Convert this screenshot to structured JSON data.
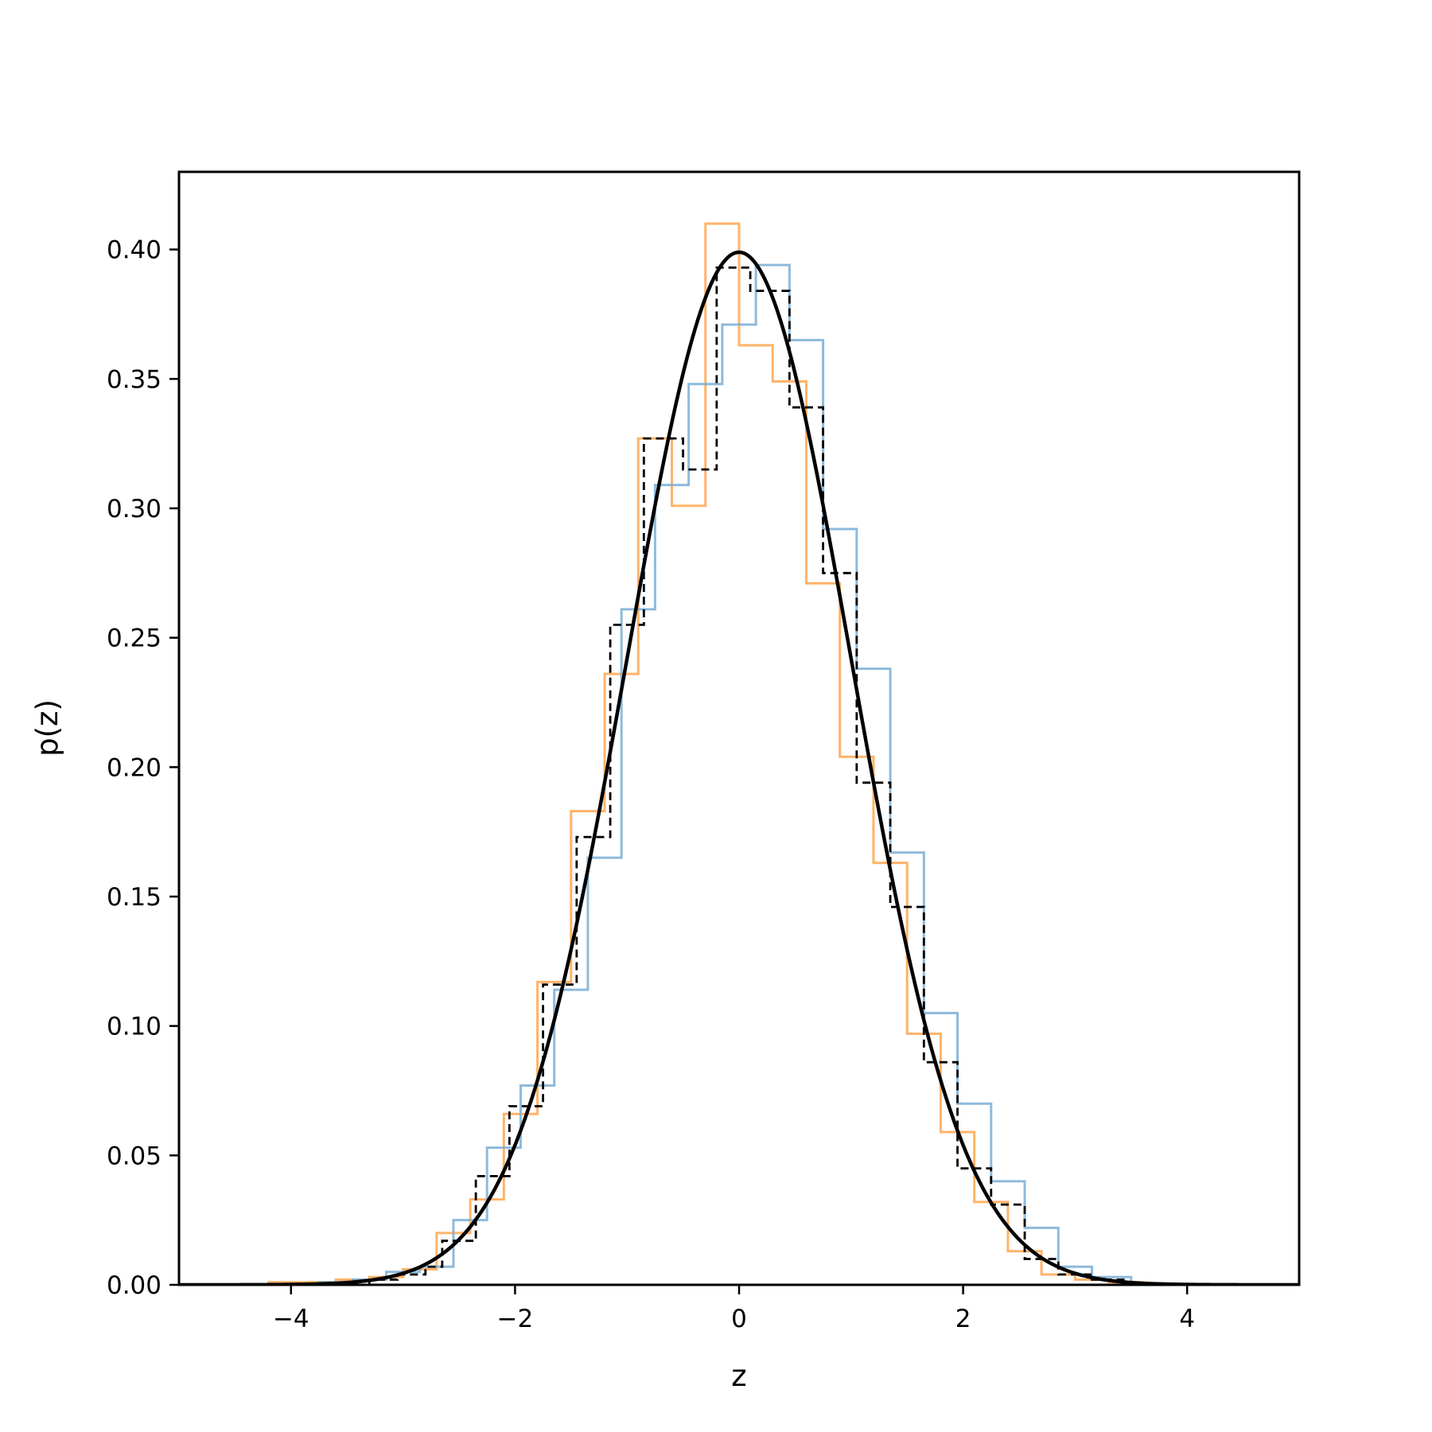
{
  "chart_data": {
    "type": "line",
    "xlabel": "z",
    "ylabel": "p(z)",
    "xlim": [
      -5,
      5
    ],
    "ylim": [
      0,
      0.43
    ],
    "grid": false,
    "legend": "none",
    "xticks": [
      {
        "value": -4,
        "label": "−4"
      },
      {
        "value": -2,
        "label": "−2"
      },
      {
        "value": 0,
        "label": "0"
      },
      {
        "value": 2,
        "label": "2"
      },
      {
        "value": 4,
        "label": "4"
      }
    ],
    "yticks": [
      {
        "value": 0.0,
        "label": "0.00"
      },
      {
        "value": 0.05,
        "label": "0.05"
      },
      {
        "value": 0.1,
        "label": "0.10"
      },
      {
        "value": 0.15,
        "label": "0.15"
      },
      {
        "value": 0.2,
        "label": "0.20"
      },
      {
        "value": 0.25,
        "label": "0.25"
      },
      {
        "value": 0.3,
        "label": "0.30"
      },
      {
        "value": 0.35,
        "label": "0.35"
      },
      {
        "value": 0.4,
        "label": "0.40"
      }
    ],
    "series": [
      {
        "style": "step",
        "color": "#ffa64d",
        "edges": [
          -4.2,
          -3.9,
          -3.6,
          -3.3,
          -3.0,
          -2.7,
          -2.4,
          -2.1,
          -1.8,
          -1.5,
          -1.2,
          -0.9,
          -0.6,
          -0.3,
          0.0,
          0.3,
          0.6,
          0.9,
          1.2,
          1.5,
          1.8,
          2.1,
          2.4,
          2.7,
          3.0,
          3.3,
          3.6
        ],
        "values": [
          0.001,
          0.001,
          0.002,
          0.003,
          0.006,
          0.02,
          0.033,
          0.066,
          0.117,
          0.183,
          0.236,
          0.327,
          0.301,
          0.41,
          0.363,
          0.349,
          0.271,
          0.204,
          0.163,
          0.097,
          0.059,
          0.032,
          0.013,
          0.004,
          0.002,
          0.001
        ]
      },
      {
        "style": "step",
        "color": "#7aaed6",
        "edges": [
          -3.75,
          -3.45,
          -3.15,
          -2.85,
          -2.55,
          -2.25,
          -1.95,
          -1.65,
          -1.35,
          -1.05,
          -0.75,
          -0.45,
          -0.15,
          0.15,
          0.45,
          0.75,
          1.05,
          1.35,
          1.65,
          1.95,
          2.25,
          2.55,
          2.85,
          3.15,
          3.5
        ],
        "values": [
          0.001,
          0.002,
          0.005,
          0.007,
          0.025,
          0.053,
          0.077,
          0.114,
          0.165,
          0.261,
          0.309,
          0.348,
          0.371,
          0.394,
          0.365,
          0.292,
          0.238,
          0.167,
          0.105,
          0.07,
          0.04,
          0.022,
          0.007,
          0.003
        ]
      },
      {
        "style": "step-dashed",
        "color": "#000000",
        "edges": [
          -3.3,
          -3.05,
          -2.8,
          -2.65,
          -2.35,
          -2.05,
          -1.75,
          -1.45,
          -1.15,
          -0.85,
          -0.5,
          -0.2,
          0.1,
          0.45,
          0.75,
          1.05,
          1.35,
          1.65,
          1.95,
          2.25,
          2.55,
          2.85,
          3.15,
          3.45
        ],
        "values": [
          0.002,
          0.004,
          0.007,
          0.017,
          0.042,
          0.069,
          0.116,
          0.173,
          0.255,
          0.327,
          0.315,
          0.393,
          0.384,
          0.339,
          0.275,
          0.194,
          0.146,
          0.086,
          0.045,
          0.031,
          0.01,
          0.004,
          0.002
        ]
      },
      {
        "style": "curve",
        "color": "#000000",
        "function": "standard-normal-pdf",
        "x_range": [
          -5,
          5
        ]
      }
    ]
  }
}
